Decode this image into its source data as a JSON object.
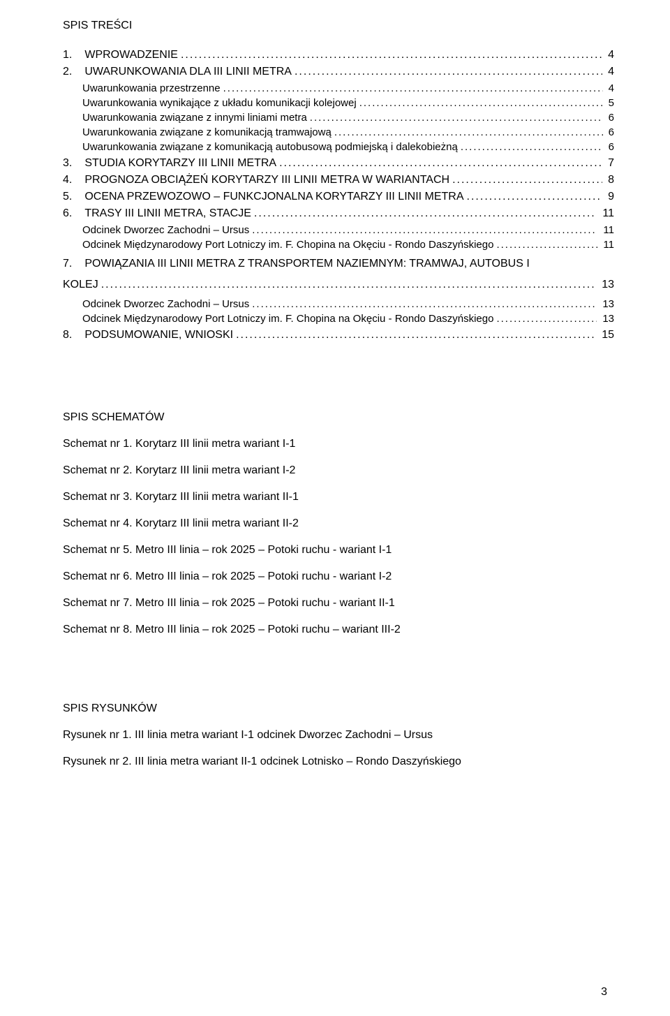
{
  "colors": {
    "background": "#ffffff",
    "text": "#000000"
  },
  "typography": {
    "font_family": "Arial",
    "body_fontsize_pt": 12,
    "heading_fontsize_pt": 12
  },
  "headings": {
    "toc": "SPIS TREŚCI",
    "schematy": "SPIS SCHEMATÓW",
    "rysunki": "SPIS RYSUNKÓW"
  },
  "toc": [
    {
      "level": 1,
      "num": "1.",
      "label": "WPROWADZENIE",
      "page": "4"
    },
    {
      "level": 1,
      "num": "2.",
      "label": "UWARUNKOWANIA DLA III LINII METRA",
      "page": "4"
    },
    {
      "level": 2,
      "num": "",
      "label": "Uwarunkowania przestrzenne",
      "page": "4"
    },
    {
      "level": 2,
      "num": "",
      "label": "Uwarunkowania wynikające z układu komunikacji kolejowej",
      "page": "5"
    },
    {
      "level": 2,
      "num": "",
      "label": "Uwarunkowania związane z innymi liniami metra",
      "page": "6"
    },
    {
      "level": 2,
      "num": "",
      "label": "Uwarunkowania związane z komunikacją tramwajową",
      "page": "6"
    },
    {
      "level": 2,
      "num": "",
      "label": "Uwarunkowania związane z komunikacją autobusową podmiejską  i dalekobieżną",
      "page": "6"
    },
    {
      "level": 1,
      "num": "3.",
      "label": "STUDIA KORYTARZY III LINII METRA",
      "page": "7"
    },
    {
      "level": 1,
      "num": "4.",
      "label": "PROGNOZA OBCIĄŻEŃ KORYTARZY III LINII METRA W WARIANTACH",
      "page": "8"
    },
    {
      "level": 1,
      "num": "5.",
      "label": "OCENA PRZEWOZOWO – FUNKCJONALNA KORYTARZY III LINII METRA",
      "page": "9"
    },
    {
      "level": 1,
      "num": "6.",
      "label": "TRASY III LINII METRA, STACJE",
      "page": "11"
    },
    {
      "level": 2,
      "num": "",
      "label": "Odcinek Dworzec Zachodni – Ursus",
      "page": "11"
    },
    {
      "level": 2,
      "num": "",
      "label": "Odcinek Międzynarodowy Port Lotniczy im. F. Chopina na Okęciu - Rondo Daszyńskiego",
      "page": "11"
    },
    {
      "level": 1,
      "num": "7.",
      "label": "POWIĄZANIA III LINII METRA Z TRANSPORTEM NAZIEMNYM: TRAMWAJ, AUTOBUS I KOLEJ",
      "page": "13",
      "wrap": true
    },
    {
      "level": 2,
      "num": "",
      "label": "Odcinek Dworzec Zachodni – Ursus",
      "page": "13"
    },
    {
      "level": 2,
      "num": "",
      "label": "Odcinek Międzynarodowy Port Lotniczy im. F. Chopina na Okęciu - Rondo Daszyńskiego",
      "page": "13"
    },
    {
      "level": 1,
      "num": "8.",
      "label": "PODSUMOWANIE, WNIOSKI",
      "page": "15"
    }
  ],
  "schematy": [
    "Schemat nr 1. Korytarz III linii metra wariant I-1",
    "Schemat nr 2. Korytarz III linii metra wariant I-2",
    "Schemat nr 3. Korytarz III linii metra wariant II-1",
    "Schemat nr 4. Korytarz III linii metra wariant II-2",
    "Schemat nr 5. Metro III linia – rok 2025 – Potoki ruchu - wariant I-1",
    "Schemat nr 6. Metro III linia – rok 2025 – Potoki ruchu - wariant I-2",
    "Schemat nr 7. Metro III linia – rok 2025 – Potoki ruchu - wariant II-1",
    "Schemat nr 8. Metro III linia – rok 2025 – Potoki ruchu – wariant III-2"
  ],
  "rysunki": [
    "Rysunek nr 1. III linia metra wariant I-1 odcinek Dworzec Zachodni – Ursus",
    "Rysunek nr 2. III linia metra wariant II-1 odcinek Lotnisko – Rondo Daszyńskiego"
  ],
  "page_number": "3"
}
